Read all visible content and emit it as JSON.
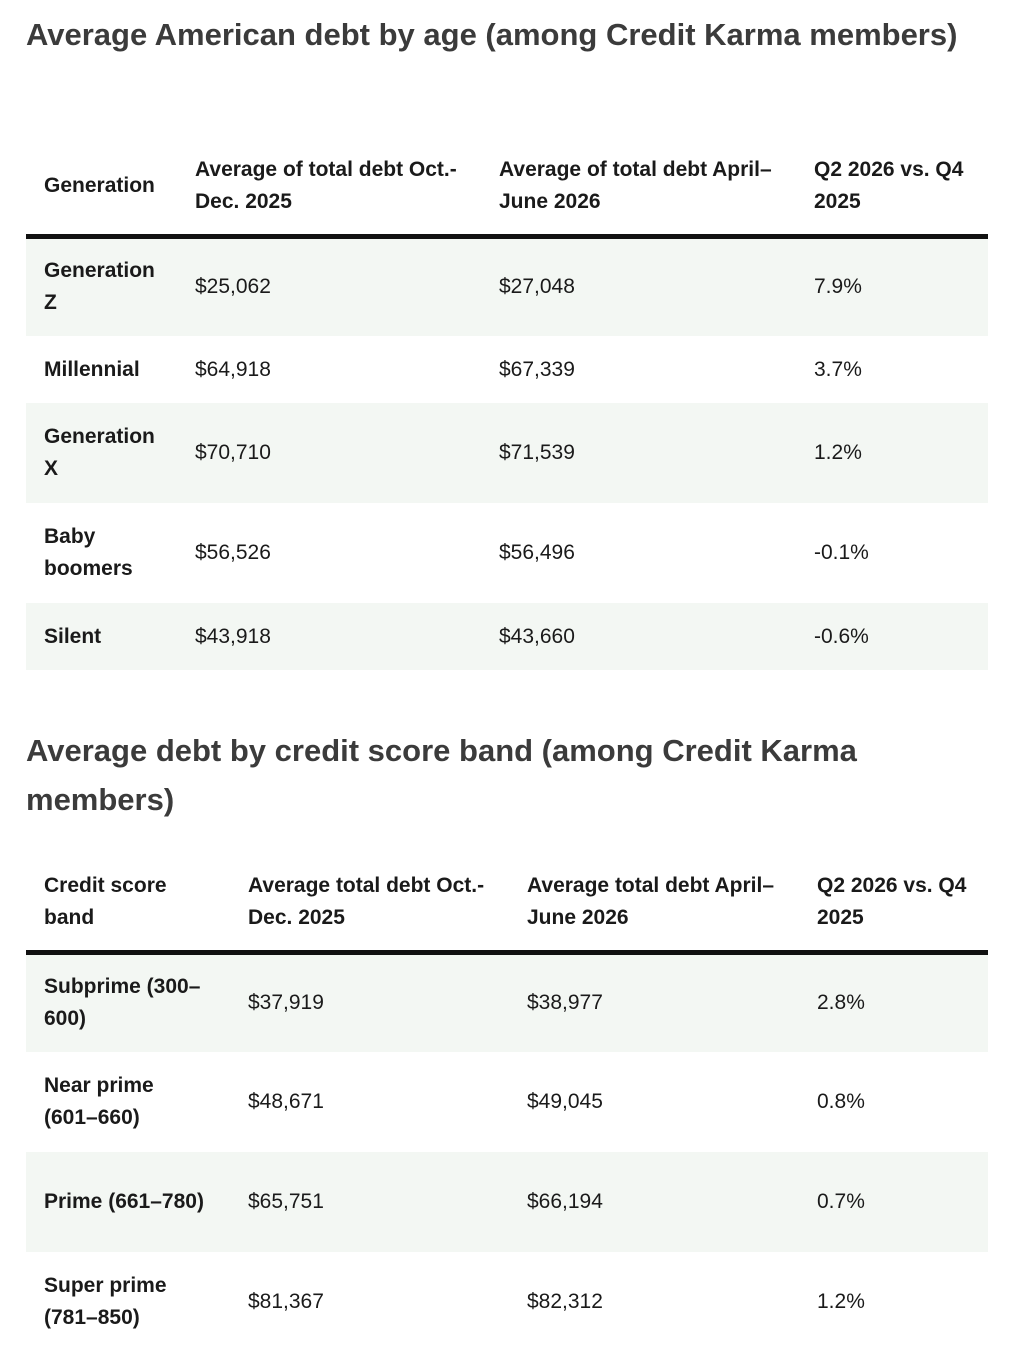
{
  "section1": {
    "title": "Average American debt by age (among Credit Karma members)",
    "headers": [
      "Generation",
      "Average of total debt Oct.-Dec. 2025",
      "Average of total debt April–June 2026",
      "Q2 2026 vs. Q4 2025"
    ],
    "rows": [
      [
        "Generation Z",
        "$25,062",
        "$27,048",
        "7.9%"
      ],
      [
        "Millennial",
        "$64,918",
        "$67,339",
        "3.7%"
      ],
      [
        "Generation X",
        "$70,710",
        "$71,539",
        "1.2%"
      ],
      [
        "Baby boomers",
        "$56,526",
        "$56,496",
        "-0.1%"
      ],
      [
        "Silent",
        "$43,918",
        "$43,660",
        "-0.6%"
      ]
    ]
  },
  "section2": {
    "title": "Average debt by credit score band (among Credit Karma members)",
    "headers": [
      "Credit score band",
      "Average total debt Oct.-Dec. 2025",
      "Average total debt April–June 2026",
      "Q2 2026 vs. Q4 2025"
    ],
    "rows": [
      [
        "Subprime (300–600)",
        "$37,919",
        "$38,977",
        "2.8%"
      ],
      [
        "Near prime (601–660)",
        "$48,671",
        "$49,045",
        "0.8%"
      ],
      [
        "Prime (661–780)",
        "$65,751",
        "$66,194",
        "0.7%"
      ],
      [
        "Super prime (781–850)",
        "$81,367",
        "$82,312",
        "1.2%"
      ]
    ]
  }
}
